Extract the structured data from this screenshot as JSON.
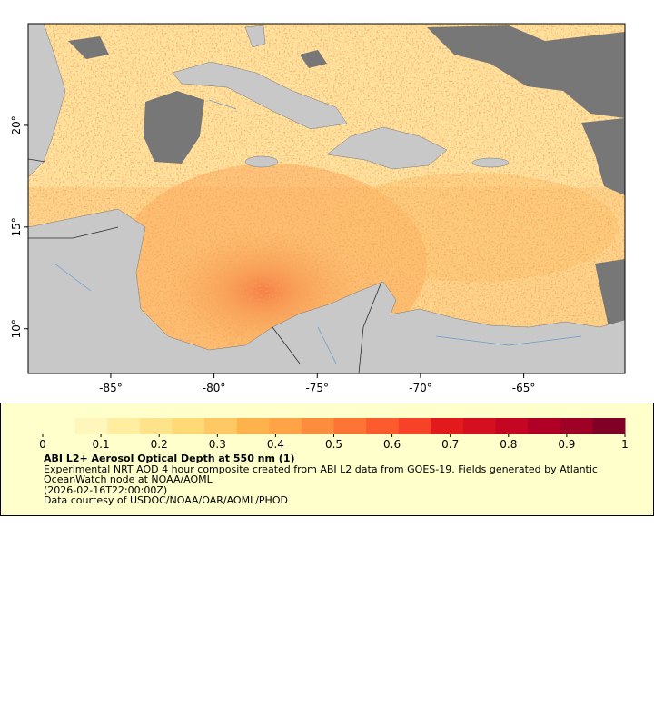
{
  "map": {
    "xlim": [
      -89,
      -60.1
    ],
    "ylim": [
      7.8,
      25
    ],
    "xticks": [
      {
        "value": -85,
        "label": "-85°"
      },
      {
        "value": -80,
        "label": "-80°"
      },
      {
        "value": -75,
        "label": "-75°"
      },
      {
        "value": -70,
        "label": "-70°"
      },
      {
        "value": -65,
        "label": "-65°"
      }
    ],
    "yticks": [
      {
        "value": 10,
        "label": "10°"
      },
      {
        "value": 15,
        "label": "15°"
      },
      {
        "value": 20,
        "label": "20°"
      }
    ]
  },
  "colorbar": {
    "lim": [
      0,
      1
    ],
    "ticks": [
      0,
      0.1,
      0.2,
      0.3,
      0.4,
      0.5,
      0.6,
      0.7,
      0.8,
      0.9,
      1
    ],
    "colors": [
      "#ffffcc",
      "#fff6bc",
      "#ffeda0",
      "#fee38b",
      "#fed976",
      "#fec965",
      "#feb24c",
      "#fea446",
      "#fd8d3c",
      "#fd7435",
      "#fc5b2e",
      "#f74227",
      "#e31a1c",
      "#d41020",
      "#c50623",
      "#b10026",
      "#9e0026",
      "#800026"
    ]
  },
  "legend": {
    "title": "ABI L2+ Aerosol Optical Depth at 550 nm (1)",
    "description": "Experimental NRT AOD 4 hour composite created from ABI L2 data from GOES-19. Fields generated by Atlantic OceanWatch node at NOAA/AOML",
    "timestamp": "(2026-02-16T22:00:00Z)",
    "credit": "Data courtesy of USDOC/NOAA/OAR/AOML/PHOD"
  }
}
